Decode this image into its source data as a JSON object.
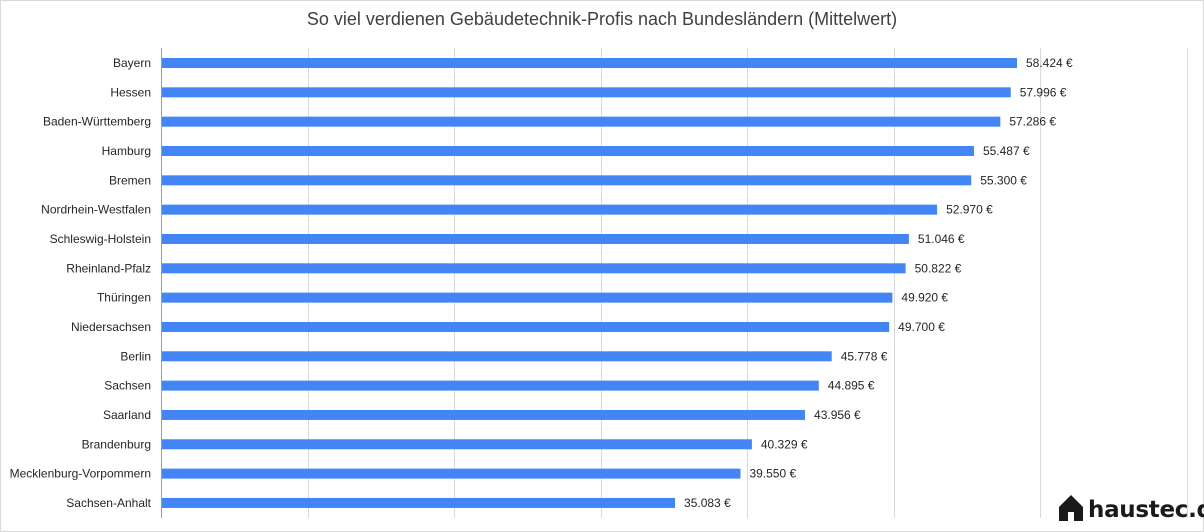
{
  "chart_data": {
    "type": "bar",
    "orientation": "horizontal",
    "title": "So viel verdienen Gebäudetechnik-Profis nach Bundesländern (Mittelwert)",
    "xlabel": "",
    "ylabel": "",
    "xlim": [
      0,
      70000
    ],
    "grid": true,
    "bar_color": "#4285f4",
    "categories": [
      "Bayern",
      "Hessen",
      "Baden-Württemberg",
      "Hamburg",
      "Bremen",
      "Nordrhein-Westfalen",
      "Schleswig-Holstein",
      "Rheinland-Pfalz",
      "Thüringen",
      "Niedersachsen",
      "Berlin",
      "Sachsen",
      "Saarland",
      "Brandenburg",
      "Mecklenburg-Vorpommern",
      "Sachsen-Anhalt"
    ],
    "values": [
      58424,
      57996,
      57286,
      55487,
      55300,
      52970,
      51046,
      50822,
      49920,
      49700,
      45778,
      44895,
      43956,
      40329,
      39550,
      35083
    ],
    "value_labels": [
      "58.424 €",
      "57.996 €",
      "57.286 €",
      "55.487 €",
      "55.300 €",
      "52.970 €",
      "51.046 €",
      "50.822 €",
      "49.920 €",
      "49.700 €",
      "45.778 €",
      "44.895 €",
      "43.956 €",
      "40.329 €",
      "39.550 €",
      "35.083 €"
    ]
  },
  "brand": {
    "name": "haustec.de",
    "icon": "house-icon"
  }
}
